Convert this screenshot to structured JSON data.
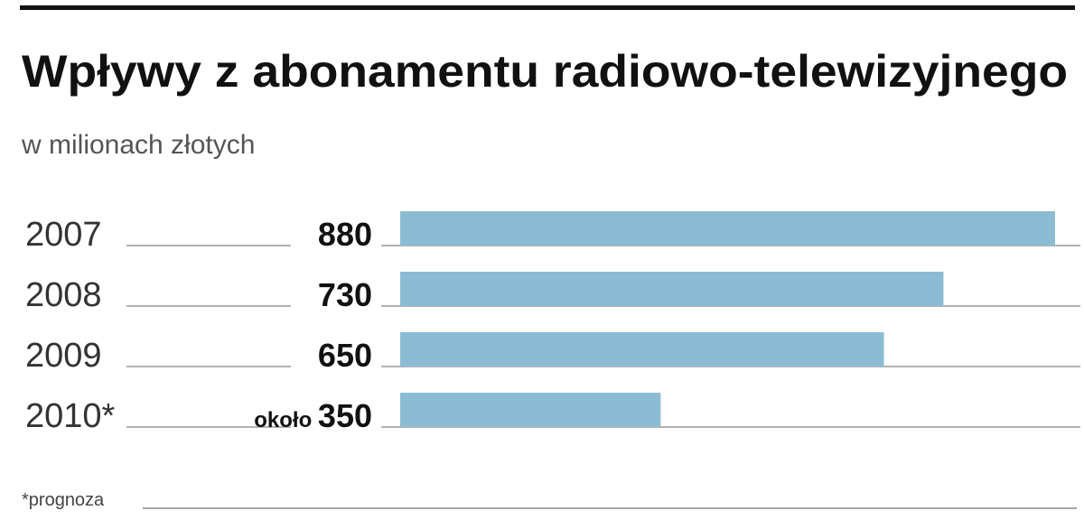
{
  "chart_data": {
    "type": "bar",
    "orientation": "horizontal",
    "title": "Wpływy z abonamentu radiowo-telewizyjnego",
    "subtitle": "w milionach złotych",
    "categories": [
      "2007",
      "2008",
      "2009",
      "2010*"
    ],
    "values": [
      880,
      730,
      650,
      350
    ],
    "value_labels": [
      "880",
      "730",
      "650",
      "około 350"
    ],
    "color": "#8bbcd4",
    "footnote": "*prognoza"
  }
}
